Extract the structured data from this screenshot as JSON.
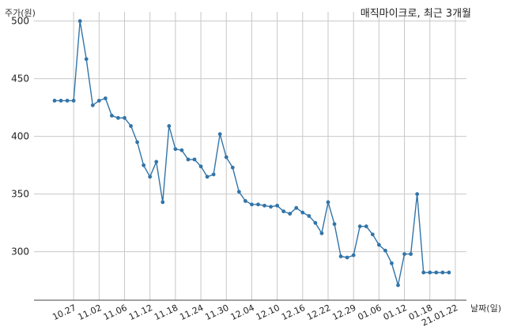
{
  "chart_data": {
    "type": "line",
    "title": "매직마이크로, 최근 3개월",
    "ylabel": "주가(원)",
    "xlabel": "날짜(일)",
    "ylim": [
      258,
      508
    ],
    "yticks": [
      300,
      350,
      400,
      450,
      500
    ],
    "grid": true,
    "x_tick_labels": [
      "10.27",
      "11.02",
      "11.06",
      "11.12",
      "11.18",
      "11.24",
      "11.30",
      "12.04",
      "12.10",
      "12.16",
      "12.22",
      "12.29",
      "01.06",
      "01.12",
      "01.18",
      "21.01.22"
    ],
    "x_tick_index": [
      3,
      7,
      11,
      15,
      19,
      23,
      27,
      31,
      35,
      39,
      43,
      47,
      51,
      55,
      59,
      63
    ],
    "color": "#3274a8",
    "values": [
      431,
      431,
      431,
      431,
      500,
      467,
      427,
      431,
      433,
      418,
      416,
      416,
      409,
      395,
      375,
      365,
      378,
      343,
      409,
      389,
      388,
      380,
      380,
      374,
      365,
      367,
      402,
      382,
      373,
      352,
      344,
      341,
      341,
      340,
      339,
      340,
      335,
      333,
      338,
      334,
      331,
      325,
      316,
      343,
      324,
      296,
      295,
      297,
      322,
      322,
      315,
      306,
      301,
      290,
      271,
      298,
      298,
      350,
      282,
      282,
      282,
      282,
      282
    ]
  }
}
